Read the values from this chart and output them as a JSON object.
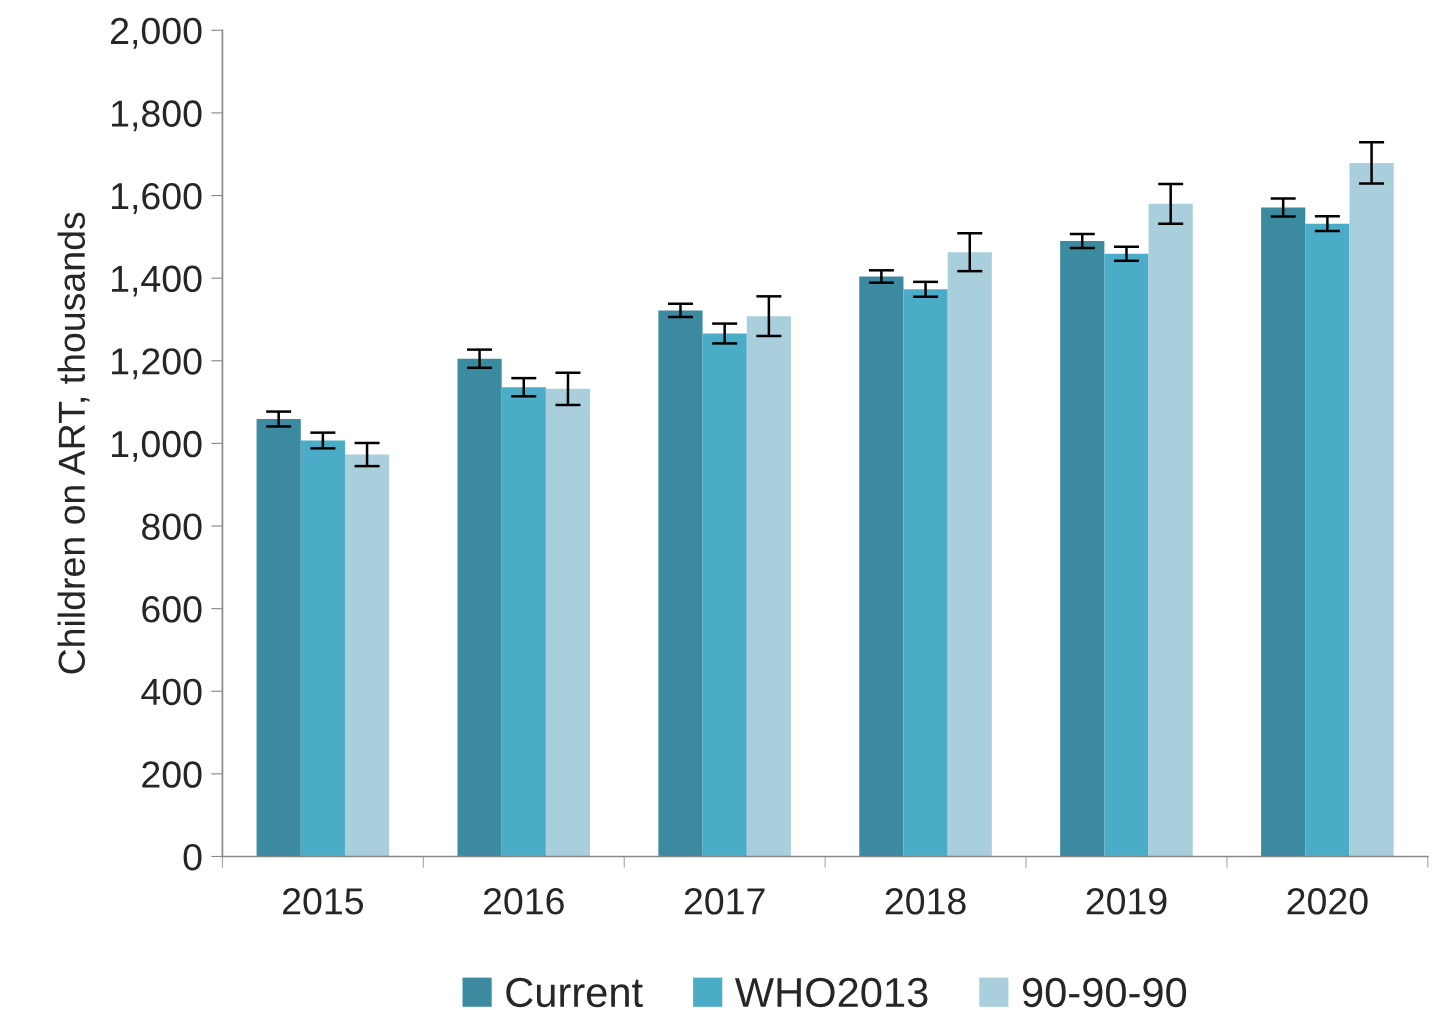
{
  "chart_data": {
    "type": "bar",
    "ylabel": "Children on ART, thousands",
    "categories": [
      "2015",
      "2016",
      "2017",
      "2018",
      "2019",
      "2020"
    ],
    "series": [
      {
        "name": "Current",
        "color": "#3c8aa0",
        "values": [
          1059,
          1205,
          1322,
          1404,
          1490,
          1571
        ],
        "errors": [
          18,
          22,
          16,
          15,
          17,
          22
        ]
      },
      {
        "name": "WHO2013",
        "color": "#4aacc6",
        "values": [
          1007,
          1136,
          1266,
          1373,
          1459,
          1532
        ],
        "errors": [
          19,
          22,
          24,
          18,
          17,
          18
        ]
      },
      {
        "name": "90-90-90",
        "color": "#a9cfdc",
        "values": [
          973,
          1132,
          1308,
          1463,
          1580,
          1679
        ],
        "errors": [
          28,
          39,
          48,
          46,
          48,
          50
        ]
      }
    ],
    "ylim": [
      0,
      2000
    ],
    "yticks": [
      {
        "value": 0,
        "label": "0"
      },
      {
        "value": 200,
        "label": "200"
      },
      {
        "value": 400,
        "label": "400"
      },
      {
        "value": 600,
        "label": "600"
      },
      {
        "value": 800,
        "label": "800"
      },
      {
        "value": 1000,
        "label": "1,000"
      },
      {
        "value": 1200,
        "label": "1,200"
      },
      {
        "value": 1400,
        "label": "1,400"
      },
      {
        "value": 1600,
        "label": "1,600"
      },
      {
        "value": 1800,
        "label": "1,800"
      },
      {
        "value": 2000,
        "label": "2,000"
      }
    ],
    "grid": false,
    "legend": "bottom"
  }
}
